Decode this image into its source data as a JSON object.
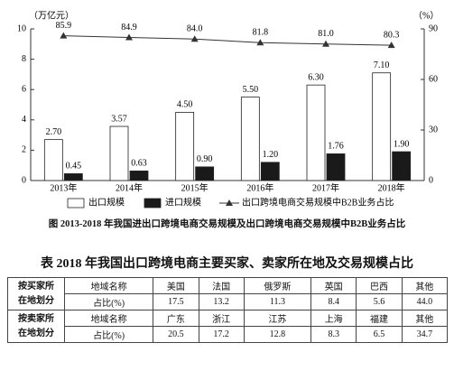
{
  "chart_data": {
    "type": "bar",
    "y_label": "（万亿元）",
    "y2_label": "（%）",
    "categories": [
      "2013年",
      "2014年",
      "2015年",
      "2016年",
      "2017年",
      "2018年"
    ],
    "series": [
      {
        "name": "出口规模",
        "color": "#ffffff",
        "values": [
          2.7,
          3.57,
          4.5,
          5.5,
          6.3,
          7.1
        ],
        "value_labels": [
          "2.70",
          "3.57",
          "4.50",
          "5.50",
          "6.30",
          "7.10"
        ]
      },
      {
        "name": "进口规模",
        "color": "#1a1a1a",
        "values": [
          0.45,
          0.63,
          0.9,
          1.2,
          1.76,
          1.9
        ],
        "value_labels": [
          "0.45",
          "0.63",
          "0.90",
          "1.20",
          "1.76",
          "1.90"
        ]
      },
      {
        "name": "出口跨境电商交易规模中B2B业务占比",
        "type": "line",
        "axis": "y2",
        "color": "#333333",
        "values": [
          85.9,
          84.9,
          84.0,
          81.8,
          81.0,
          80.3
        ],
        "value_labels": [
          "85.9",
          "84.9",
          "84.0",
          "81.8",
          "81.0",
          "80.3"
        ]
      }
    ],
    "ylim": [
      0,
      10
    ],
    "yticks": [
      0,
      2,
      4,
      6,
      8,
      10
    ],
    "y2lim": [
      0,
      90
    ],
    "y2ticks": [
      0,
      30,
      60,
      90
    ]
  },
  "caption": "图 2013-2018 年我国进出口跨境电商交易规模及出口跨境电商交易规模中B2B业务占比",
  "table": {
    "title": "表 2018 年我国出口跨境电商主要买家、卖家所在地及交易规模占比",
    "groups": [
      {
        "label": [
          "按买家所",
          "在地划分"
        ],
        "rows": [
          [
            "地域名称",
            "美国",
            "法国",
            "俄罗斯",
            "英国",
            "巴西",
            "其他"
          ],
          [
            "占比(%)",
            "17.5",
            "13.2",
            "11.3",
            "8.4",
            "5.6",
            "44.0"
          ]
        ]
      },
      {
        "label": [
          "按卖家所",
          "在地划分"
        ],
        "rows": [
          [
            "地域名称",
            "广东",
            "浙江",
            "江苏",
            "上海",
            "福建",
            "其他"
          ],
          [
            "占比(%)",
            "20.5",
            "17.2",
            "12.8",
            "8.3",
            "6.5",
            "34.7"
          ]
        ]
      }
    ]
  }
}
